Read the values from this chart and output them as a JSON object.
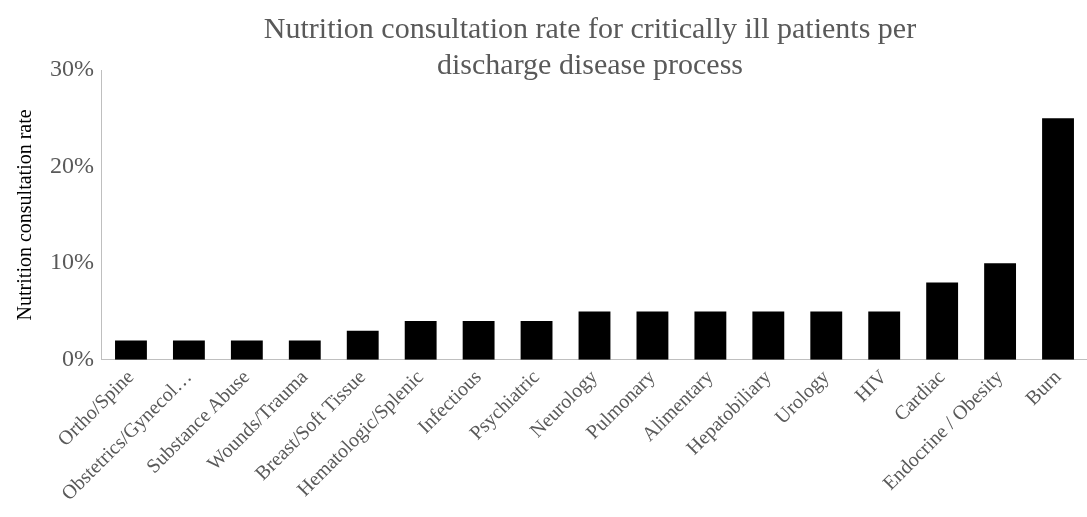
{
  "chart_data": {
    "type": "bar",
    "title": "Nutrition consultation rate for critically ill patients per discharge disease process",
    "ylabel": "Nutrition consultation rate",
    "categories": [
      "Ortho/Spine",
      "Obstetrics/Gynecol…",
      "Substance Abuse",
      "Wounds/Trauma",
      "Breast/Soft Tissue",
      "Hematologic/Splenic",
      "Infectious",
      "Psychiatric",
      "Neurology",
      "Pulmonary",
      "Alimentary",
      "Hepatobiliary",
      "Urology",
      "HIV",
      "Cardiac",
      "Endocrine / Obesity",
      "Burn"
    ],
    "values": [
      2,
      2,
      2,
      2,
      3,
      4,
      4,
      4,
      5,
      5,
      5,
      5,
      5,
      5,
      8,
      10,
      25
    ],
    "color": "#000000",
    "ylim": [
      0,
      30
    ],
    "yticks": [
      {
        "value": 0,
        "label": "0%"
      },
      {
        "value": 10,
        "label": "10%"
      },
      {
        "value": 20,
        "label": "20%"
      },
      {
        "value": 30,
        "label": "30%"
      }
    ],
    "grid": false,
    "legend": false
  }
}
